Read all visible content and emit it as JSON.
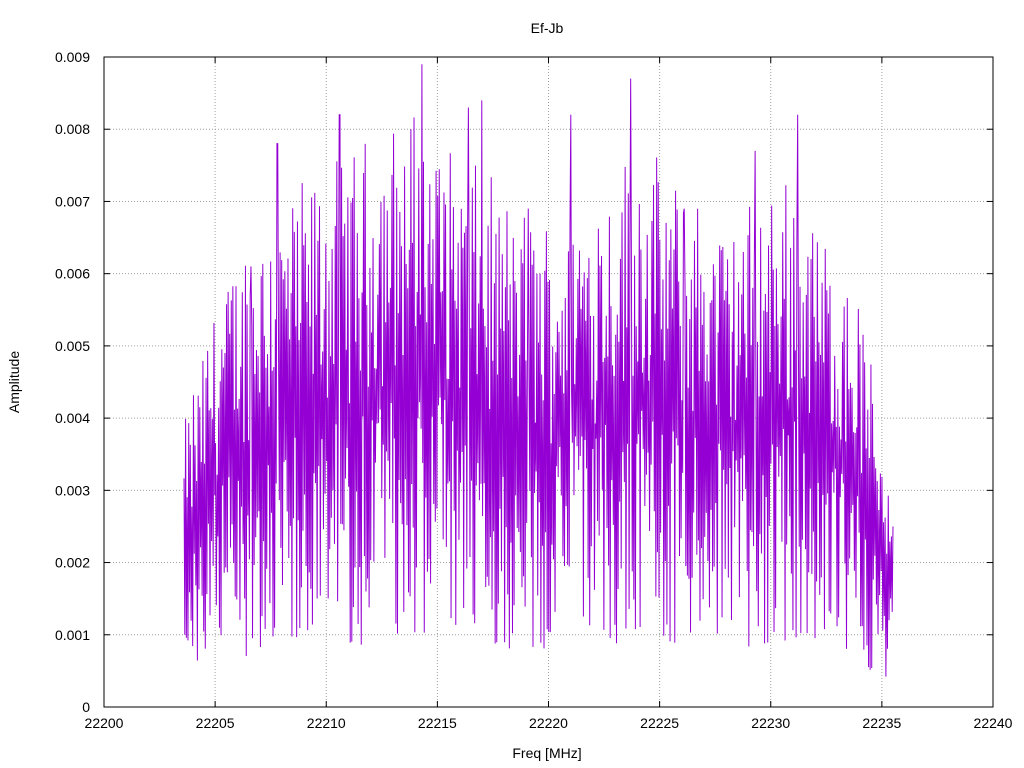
{
  "chart_data": {
    "type": "line",
    "title": "Ef-Jb",
    "xlabel": "Freq [MHz]",
    "ylabel": "Amplitude",
    "xlim": [
      22200,
      22240
    ],
    "ylim": [
      0,
      0.009
    ],
    "x_ticks": [
      "22200",
      "22205",
      "22210",
      "22215",
      "22220",
      "22225",
      "22230",
      "22235",
      "22240"
    ],
    "y_ticks": [
      "0",
      "0.001",
      "0.002",
      "0.003",
      "0.004",
      "0.005",
      "0.006",
      "0.007",
      "0.008",
      "0.009"
    ],
    "grid": true,
    "series_color": "#9400d3",
    "x_start": 22203.6,
    "x_end": 22235.5,
    "peaks": [
      {
        "x": 22207.8,
        "y": 0.0078
      },
      {
        "x": 22210.6,
        "y": 0.0082
      },
      {
        "x": 22214.3,
        "y": 0.0089
      },
      {
        "x": 22216.4,
        "y": 0.0083
      },
      {
        "x": 22217.0,
        "y": 0.0084
      },
      {
        "x": 22221.0,
        "y": 0.0082
      },
      {
        "x": 22223.7,
        "y": 0.0087
      },
      {
        "x": 22229.3,
        "y": 0.0077
      },
      {
        "x": 22231.2,
        "y": 0.0082
      },
      {
        "x": 22226.1,
        "y": 0.0069
      },
      {
        "x": 22219.1,
        "y": 0.0069
      },
      {
        "x": 22206.6,
        "y": 0.0061
      }
    ],
    "envelope": [
      {
        "x": 22203.6,
        "y": 0.002
      },
      {
        "x": 22205.0,
        "y": 0.003
      },
      {
        "x": 22207.0,
        "y": 0.0037
      },
      {
        "x": 22210.0,
        "y": 0.004
      },
      {
        "x": 22214.0,
        "y": 0.0045
      },
      {
        "x": 22218.0,
        "y": 0.0038
      },
      {
        "x": 22220.0,
        "y": 0.0036
      },
      {
        "x": 22224.0,
        "y": 0.0042
      },
      {
        "x": 22228.0,
        "y": 0.0036
      },
      {
        "x": 22231.0,
        "y": 0.004
      },
      {
        "x": 22234.0,
        "y": 0.003
      },
      {
        "x": 22235.5,
        "y": 0.0015
      }
    ]
  }
}
